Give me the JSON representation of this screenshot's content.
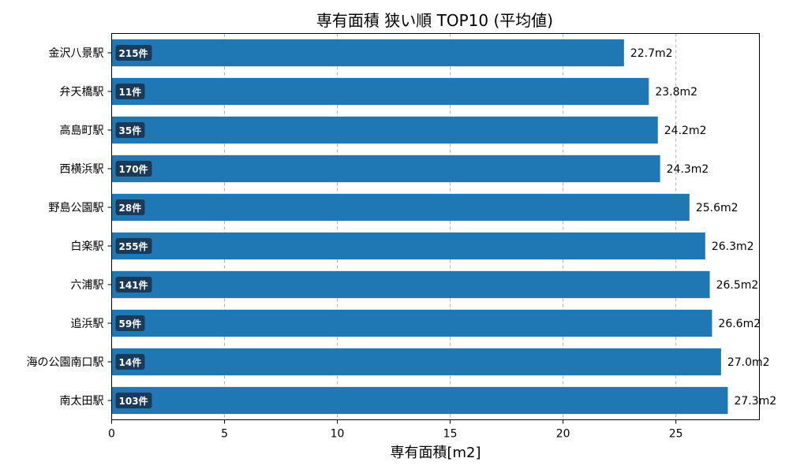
{
  "chart_data": {
    "type": "bar",
    "orientation": "horizontal",
    "title": "専有面積 狭い順 TOP10 (平均値)",
    "xlabel": "専有面積[m2]",
    "ylabel": "",
    "xlim": [
      0,
      28.7
    ],
    "xticks": [
      0,
      5,
      10,
      15,
      20,
      25
    ],
    "grid": "vertical-dashed",
    "bar_color": "#1f77b4",
    "badge_color": "#1b3a57",
    "categories": [
      "金沢八景駅",
      "弁天橋駅",
      "高島町駅",
      "西横浜駅",
      "野島公園駅",
      "白楽駅",
      "六浦駅",
      "追浜駅",
      "海の公園南口駅",
      "南太田駅"
    ],
    "values": [
      22.7,
      23.8,
      24.2,
      24.3,
      25.6,
      26.3,
      26.5,
      26.6,
      27.0,
      27.3
    ],
    "value_labels": [
      "22.7m2",
      "23.8m2",
      "24.2m2",
      "24.3m2",
      "25.6m2",
      "26.3m2",
      "26.5m2",
      "26.6m2",
      "27.0m2",
      "27.3m2"
    ],
    "counts": [
      "215件",
      "11件",
      "35件",
      "170件",
      "28件",
      "255件",
      "141件",
      "59件",
      "14件",
      "103件"
    ]
  }
}
